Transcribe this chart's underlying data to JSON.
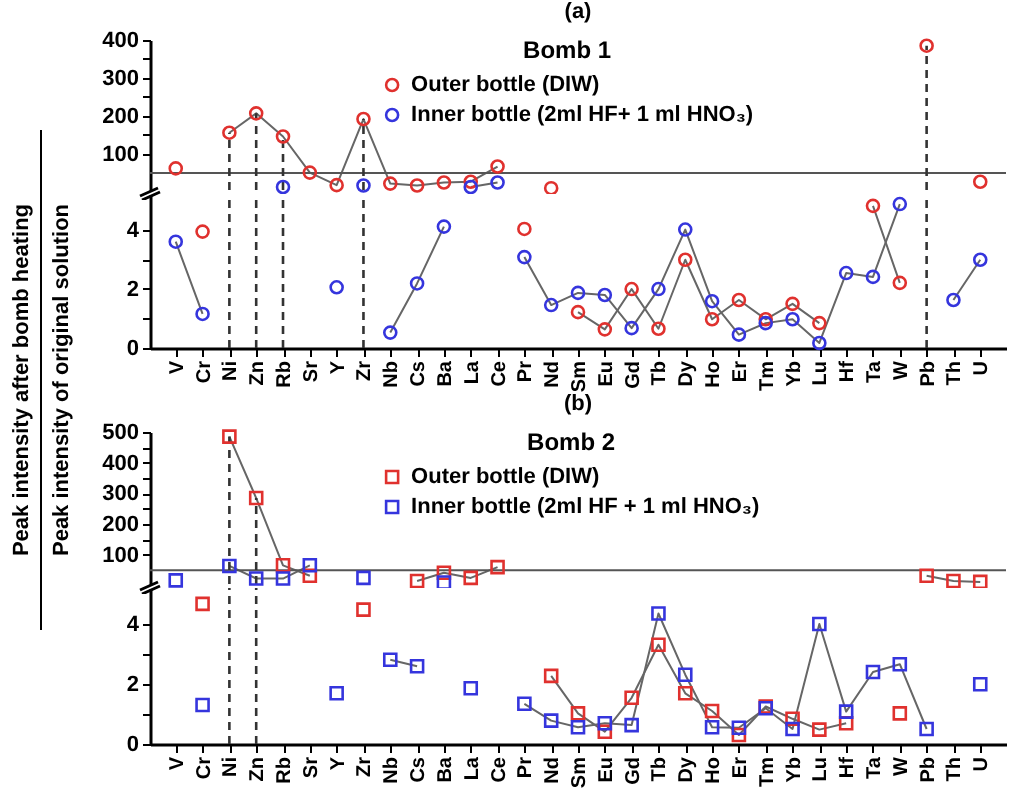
{
  "chart_data": [
    {
      "type": "line",
      "title": "(a)",
      "ylabel": "Peak intensity after bomb heating",
      "legend_title": "Bomb 1",
      "legend": "top",
      "marker": "circle",
      "tick_labels": "y",
      "categories": [
        "V",
        "Cr",
        "Ni",
        "Zn",
        "Rb",
        "Sr",
        "Y",
        "Zr",
        "Nb",
        "Cs",
        "Ba",
        "La",
        "Ce",
        "Pr",
        "Nd",
        "Sm",
        "Eu",
        "Gd",
        "Tb",
        "Dy",
        "Ho",
        "Er",
        "Tm",
        "Yb",
        "Lu",
        "Hf",
        "Ta",
        "W",
        "Pb",
        "Th",
        "U"
      ],
      "ylim": [
        5.2,
        400
      ],
      "yticks": [
        100,
        {
          "value": 150,
          "label": null
        },
        200,
        {
          "value": 250,
          "label": null
        },
        300,
        {
          "value": 350,
          "label": null
        },
        400
      ],
      "ref_lines": [
        {
          "axis": "y",
          "value": 50,
          "color": "#555555"
        },
        {
          "axis": "x",
          "value": "Ni",
          "line_style": "dashed",
          "color": "#333333"
        },
        {
          "axis": "x",
          "value": "Zn",
          "line_style": "dashed",
          "color": "#333333"
        },
        {
          "axis": "x",
          "value": "Rb",
          "line_style": "dashed",
          "color": "#333333"
        },
        {
          "axis": "x",
          "value": "Zr",
          "line_style": "dashed",
          "color": "#333333"
        },
        {
          "axis": "x",
          "value": "Pb",
          "line_style": "dashed",
          "color": "#333333"
        }
      ],
      "series": [
        {
          "name": "Outer bottle (DIW)",
          "color": "#e0312e",
          "values": [
            62,
            null,
            156,
            207,
            146,
            51,
            18,
            192,
            22,
            17,
            25,
            27,
            67,
            null,
            10,
            null,
            null,
            null,
            null,
            null,
            null,
            null,
            null,
            null,
            null,
            null,
            null,
            null,
            385,
            null,
            27
          ]
        },
        {
          "name": "Inner bottle (2ml HF+ 1 ml HNO₃)",
          "color": "#3535dd",
          "values": [
            null,
            null,
            null,
            null,
            13,
            null,
            null,
            17,
            null,
            null,
            null,
            13,
            25,
            null,
            null,
            null,
            null,
            null,
            null,
            null,
            null,
            null,
            null,
            null,
            null,
            null,
            null,
            null,
            null,
            null,
            null
          ]
        }
      ]
    },
    {
      "type": "line",
      "ylabel": "Peak intensity of original solution",
      "marker": "circle",
      "categories": [
        "V",
        "Cr",
        "Ni",
        "Zn",
        "Rb",
        "Sr",
        "Y",
        "Zr",
        "Nb",
        "Cs",
        "Ba",
        "La",
        "Ce",
        "Pr",
        "Nd",
        "Sm",
        "Eu",
        "Gd",
        "Tb",
        "Dy",
        "Ho",
        "Er",
        "Tm",
        "Yb",
        "Lu",
        "Hf",
        "Ta",
        "W",
        "Pb",
        "Th",
        "U"
      ],
      "ylim": [
        0,
        5.2
      ],
      "yticks": [
        0,
        {
          "value": 1,
          "label": null
        },
        2,
        {
          "value": 3,
          "label": null
        },
        4
      ],
      "ref_lines": [
        {
          "axis": "x",
          "value": "Ni",
          "line_style": "dashed",
          "color": "#333333"
        },
        {
          "axis": "x",
          "value": "Zn",
          "line_style": "dashed",
          "color": "#333333"
        },
        {
          "axis": "x",
          "value": "Rb",
          "line_style": "dashed",
          "color": "#333333"
        },
        {
          "axis": "x",
          "value": "Zr",
          "line_style": "dashed",
          "color": "#333333"
        },
        {
          "axis": "x",
          "value": "Pb",
          "line_style": "dashed",
          "color": "#333333"
        }
      ],
      "series": [
        {
          "color": "#e0312e",
          "values": [
            null,
            3.93,
            null,
            null,
            null,
            null,
            null,
            null,
            null,
            null,
            null,
            null,
            null,
            4.02,
            null,
            1.21,
            0.63,
            1.99,
            0.65,
            2.98,
            0.97,
            1.62,
            0.97,
            1.49,
            0.84,
            null,
            4.8,
            2.2,
            null,
            null,
            null
          ]
        },
        {
          "color": "#3535dd",
          "values": [
            3.59,
            1.15,
            null,
            null,
            null,
            null,
            2.05,
            null,
            0.52,
            2.18,
            4.1,
            null,
            null,
            3.07,
            1.45,
            1.86,
            1.79,
            0.67,
            1.99,
            4.0,
            1.58,
            0.45,
            0.84,
            0.97,
            0.17,
            2.53,
            2.4,
            4.86,
            null,
            1.62,
            2.98
          ]
        }
      ]
    },
    {
      "type": "line",
      "title": "(b)",
      "legend_title": "Bomb 2",
      "legend": "top",
      "marker": "square",
      "tick_labels": "y",
      "categories": [
        "V",
        "Cr",
        "Ni",
        "Zn",
        "Rb",
        "Sr",
        "Y",
        "Zr",
        "Nb",
        "Cs",
        "Ba",
        "La",
        "Ce",
        "Pr",
        "Nd",
        "Sm",
        "Eu",
        "Gd",
        "Tb",
        "Dy",
        "Ho",
        "Er",
        "Tm",
        "Yb",
        "Lu",
        "Hf",
        "Ta",
        "W",
        "Pb",
        "Th",
        "U"
      ],
      "ylim": [
        5.2,
        500
      ],
      "yticks": [
        100,
        {
          "value": 150,
          "label": null
        },
        200,
        {
          "value": 250,
          "label": null
        },
        300,
        {
          "value": 350,
          "label": null
        },
        400,
        {
          "value": 450,
          "label": null
        },
        500
      ],
      "ref_lines": [
        {
          "axis": "y",
          "value": 50,
          "color": "#555555"
        },
        {
          "axis": "x",
          "value": "Ni",
          "line_style": "dashed",
          "color": "#333333"
        },
        {
          "axis": "x",
          "value": "Zn",
          "line_style": "dashed",
          "color": "#333333"
        }
      ],
      "series": [
        {
          "name": "Outer bottle (DIW)",
          "color": "#e0312e",
          "values": [
            null,
            null,
            485,
            285,
            66,
            32,
            null,
            null,
            null,
            15,
            42,
            25,
            60,
            null,
            null,
            null,
            null,
            null,
            null,
            null,
            null,
            null,
            null,
            null,
            null,
            null,
            null,
            null,
            32,
            15,
            12
          ]
        },
        {
          "name": "Inner bottle (2ml HF + 1 ml HNO₃)",
          "color": "#3535dd",
          "values": [
            17,
            null,
            64,
            23,
            23,
            66,
            null,
            25,
            null,
            null,
            10,
            null,
            null,
            null,
            null,
            null,
            null,
            null,
            null,
            null,
            null,
            null,
            null,
            null,
            null,
            null,
            null,
            null,
            null,
            null,
            null
          ]
        }
      ]
    },
    {
      "type": "line",
      "marker": "square",
      "categories": [
        "V",
        "Cr",
        "Ni",
        "Zn",
        "Rb",
        "Sr",
        "Y",
        "Zr",
        "Nb",
        "Cs",
        "Ba",
        "La",
        "Ce",
        "Pr",
        "Nd",
        "Sm",
        "Eu",
        "Gd",
        "Tb",
        "Dy",
        "Ho",
        "Er",
        "Tm",
        "Yb",
        "Lu",
        "Hf",
        "Ta",
        "W",
        "Pb",
        "Th",
        "U"
      ],
      "ylim": [
        0,
        5.2
      ],
      "yticks": [
        0,
        {
          "value": 1,
          "label": null
        },
        2,
        {
          "value": 3,
          "label": null
        },
        4
      ],
      "ref_lines": [
        {
          "axis": "x",
          "value": "Ni",
          "line_style": "dashed",
          "color": "#333333"
        },
        {
          "axis": "x",
          "value": "Zn",
          "line_style": "dashed",
          "color": "#333333"
        }
      ],
      "series": [
        {
          "color": "#e0312e",
          "values": [
            null,
            4.67,
            null,
            null,
            null,
            null,
            null,
            4.48,
            null,
            null,
            null,
            null,
            null,
            null,
            2.27,
            1.02,
            0.41,
            1.54,
            3.31,
            1.69,
            1.1,
            0.3,
            1.25,
            0.84,
            0.48,
            0.69,
            null,
            1.02,
            null,
            null,
            null
          ]
        },
        {
          "color": "#3535dd",
          "values": [
            null,
            1.3,
            null,
            null,
            null,
            null,
            1.69,
            null,
            2.81,
            2.59,
            null,
            1.86,
            null,
            1.34,
            0.78,
            0.56,
            0.69,
            0.63,
            4.35,
            2.31,
            0.56,
            0.54,
            1.19,
            0.5,
            4.0,
            1.08,
            2.4,
            2.66,
            0.5,
            null,
            1.99
          ]
        }
      ]
    }
  ]
}
